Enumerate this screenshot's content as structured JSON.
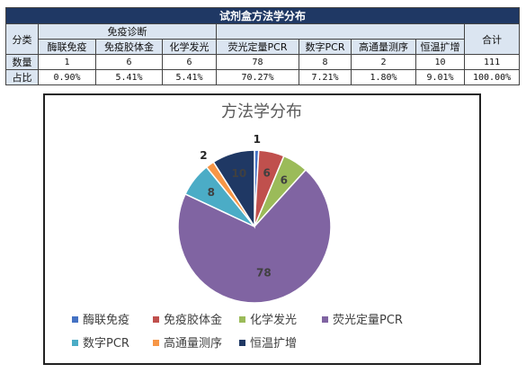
{
  "table": {
    "title": "试剂盒方法学分布",
    "row_header_category": "分类",
    "group_label": "免疫诊断",
    "total_label": "合计",
    "row_count_label": "数量",
    "row_ratio_label": "占比",
    "columns": [
      "酶联免疫",
      "免疫胶体金",
      "化学发光",
      "荧光定量PCR",
      "数字PCR",
      "高通量测序",
      "恒温扩增"
    ],
    "counts": [
      "1",
      "6",
      "6",
      "78",
      "8",
      "2",
      "10"
    ],
    "ratios": [
      "0.90%",
      "5.41%",
      "5.41%",
      "70.27%",
      "7.21%",
      "1.80%",
      "9.01%"
    ],
    "total_count": "111",
    "total_ratio": "100.00%"
  },
  "chart_data": {
    "type": "pie",
    "title": "方法学分布",
    "categories": [
      "酶联免疫",
      "免疫胶体金",
      "化学发光",
      "荧光定量PCR",
      "数字PCR",
      "高通量测序",
      "恒温扩增"
    ],
    "values": [
      1,
      6,
      6,
      78,
      8,
      2,
      10
    ],
    "colors": [
      "#4472c4",
      "#c0504d",
      "#9bbb59",
      "#8064a2",
      "#4bacc6",
      "#f79646",
      "#1f3864"
    ],
    "data_labels": [
      "1",
      "6",
      "6",
      "78",
      "8",
      "2",
      "10"
    ],
    "legend_position": "bottom",
    "start_angle": "top, clockwise"
  }
}
